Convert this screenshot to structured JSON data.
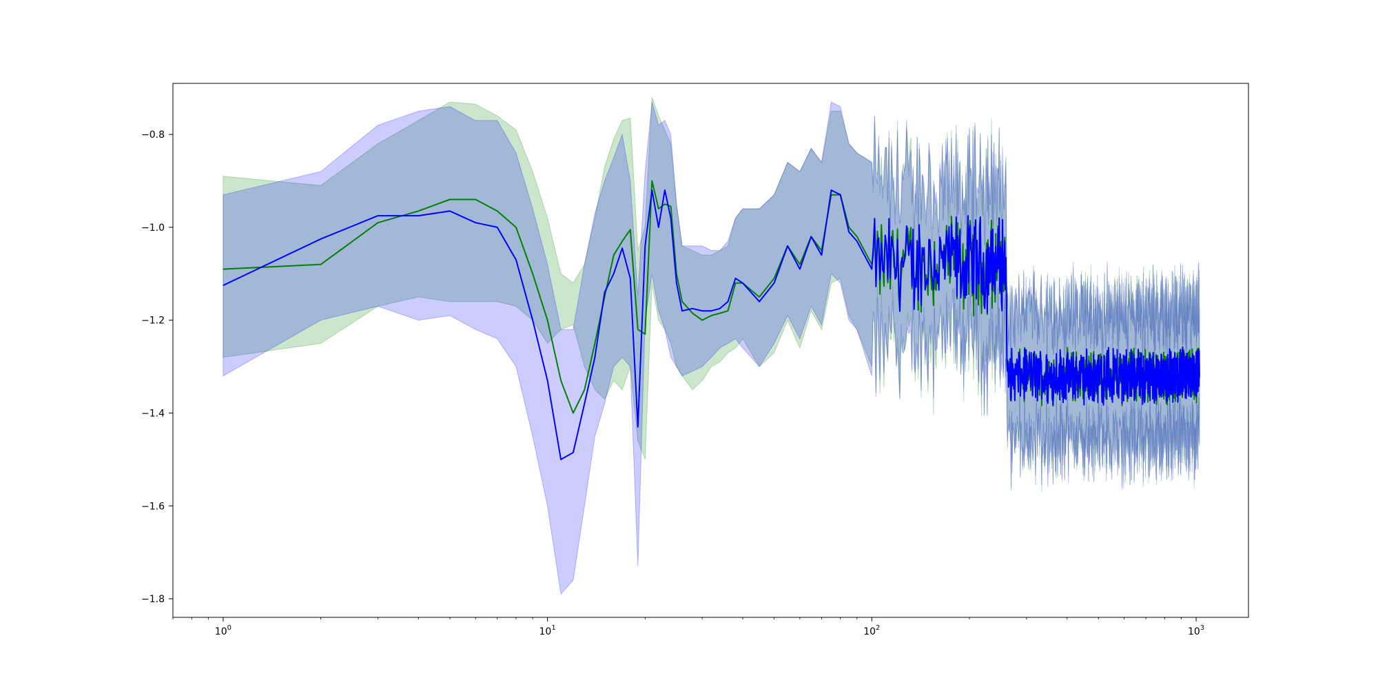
{
  "chart_data": {
    "type": "line",
    "title": "",
    "xlabel": "",
    "ylabel": "",
    "xscale": "log",
    "xlim": [
      0.7,
      1450
    ],
    "ylim": [
      -1.84,
      -0.69
    ],
    "grid": false,
    "xtick_labels": [
      {
        "value": 1,
        "base": "10",
        "exp": "0"
      },
      {
        "value": 10,
        "base": "10",
        "exp": "1"
      },
      {
        "value": 100,
        "base": "10",
        "exp": "2"
      },
      {
        "value": 1000,
        "base": "10",
        "exp": "3"
      }
    ],
    "ytick_labels": [
      {
        "value": -0.8,
        "label": "−0.8"
      },
      {
        "value": -1.0,
        "label": "−1.0"
      },
      {
        "value": -1.2,
        "label": "−1.2"
      },
      {
        "value": -1.4,
        "label": "−1.4"
      },
      {
        "value": -1.6,
        "label": "−1.6"
      },
      {
        "value": -1.8,
        "label": "−1.8"
      }
    ],
    "series": [
      {
        "color": "#008000",
        "band_color": "#008000",
        "band_opacity": 0.2,
        "x": [
          1,
          2,
          3,
          4,
          5,
          6,
          7,
          8,
          9,
          10,
          11,
          12,
          13,
          14,
          15,
          16,
          17,
          18,
          19,
          20,
          21,
          22,
          23,
          24,
          25,
          26,
          28,
          30,
          32,
          34,
          36,
          38,
          40,
          45,
          50,
          55,
          60,
          65,
          70,
          75,
          80,
          85,
          90,
          100
        ],
        "mean": [
          -1.09,
          -1.08,
          -0.99,
          -0.965,
          -0.94,
          -0.94,
          -0.965,
          -1.0,
          -1.1,
          -1.2,
          -1.33,
          -1.4,
          -1.35,
          -1.25,
          -1.15,
          -1.06,
          -1.03,
          -1.005,
          -1.22,
          -1.23,
          -0.9,
          -0.96,
          -0.95,
          -0.955,
          -1.1,
          -1.16,
          -1.185,
          -1.2,
          -1.19,
          -1.185,
          -1.18,
          -1.12,
          -1.12,
          -1.15,
          -1.11,
          -1.04,
          -1.08,
          -1.02,
          -1.05,
          -0.93,
          -0.93,
          -1.0,
          -1.02,
          -1.08
        ],
        "lower": [
          -1.28,
          -1.25,
          -1.17,
          -1.15,
          -1.16,
          -1.16,
          -1.16,
          -1.17,
          -1.2,
          -1.25,
          -1.22,
          -1.21,
          -1.3,
          -1.35,
          -1.37,
          -1.33,
          -1.35,
          -1.3,
          -1.46,
          -1.5,
          -1.12,
          -1.2,
          -1.22,
          -1.25,
          -1.3,
          -1.32,
          -1.35,
          -1.33,
          -1.3,
          -1.29,
          -1.27,
          -1.26,
          -1.24,
          -1.3,
          -1.27,
          -1.2,
          -1.26,
          -1.18,
          -1.22,
          -1.12,
          -1.11,
          -1.19,
          -1.22,
          -1.3
        ],
        "upper": [
          -0.89,
          -0.91,
          -0.82,
          -0.77,
          -0.73,
          -0.735,
          -0.76,
          -0.79,
          -0.88,
          -0.98,
          -1.1,
          -1.12,
          -1.08,
          -0.98,
          -0.87,
          -0.81,
          -0.77,
          -0.765,
          -1.05,
          -1.0,
          -0.72,
          -0.76,
          -0.79,
          -0.82,
          -0.95,
          -1.04,
          -1.05,
          -1.06,
          -1.06,
          -1.05,
          -1.04,
          -0.98,
          -0.96,
          -0.96,
          -0.93,
          -0.86,
          -0.88,
          -0.83,
          -0.86,
          -0.75,
          -0.75,
          -0.82,
          -0.84,
          -0.86
        ]
      },
      {
        "color": "#0000ff",
        "band_color": "#0000ff",
        "band_opacity": 0.2,
        "x": [
          1,
          2,
          3,
          4,
          5,
          6,
          7,
          8,
          9,
          10,
          11,
          12,
          13,
          14,
          15,
          16,
          17,
          18,
          19,
          20,
          21,
          22,
          23,
          24,
          25,
          26,
          28,
          30,
          32,
          34,
          36,
          38,
          40,
          45,
          50,
          55,
          60,
          65,
          70,
          75,
          80,
          85,
          90,
          100
        ],
        "mean": [
          -1.125,
          -1.025,
          -0.975,
          -0.975,
          -0.965,
          -0.99,
          -1.0,
          -1.07,
          -1.2,
          -1.33,
          -1.5,
          -1.485,
          -1.38,
          -1.28,
          -1.14,
          -1.1,
          -1.045,
          -1.11,
          -1.43,
          -1.04,
          -0.92,
          -1.0,
          -0.92,
          -0.98,
          -1.12,
          -1.18,
          -1.175,
          -1.18,
          -1.18,
          -1.175,
          -1.16,
          -1.11,
          -1.12,
          -1.16,
          -1.12,
          -1.04,
          -1.09,
          -1.02,
          -1.06,
          -0.92,
          -0.93,
          -1.01,
          -1.03,
          -1.09
        ],
        "lower": [
          -1.32,
          -1.2,
          -1.17,
          -1.2,
          -1.19,
          -1.22,
          -1.24,
          -1.3,
          -1.45,
          -1.6,
          -1.79,
          -1.76,
          -1.6,
          -1.45,
          -1.38,
          -1.3,
          -1.28,
          -1.3,
          -1.73,
          -1.2,
          -1.1,
          -1.18,
          -1.22,
          -1.28,
          -1.3,
          -1.32,
          -1.31,
          -1.3,
          -1.28,
          -1.26,
          -1.25,
          -1.24,
          -1.26,
          -1.3,
          -1.25,
          -1.19,
          -1.24,
          -1.17,
          -1.21,
          -1.1,
          -1.12,
          -1.2,
          -1.22,
          -1.32
        ],
        "upper": [
          -0.93,
          -0.88,
          -0.78,
          -0.75,
          -0.74,
          -0.77,
          -0.77,
          -0.84,
          -0.96,
          -1.08,
          -1.22,
          -1.22,
          -1.08,
          -0.97,
          -0.9,
          -0.85,
          -0.8,
          -0.9,
          -1.15,
          -0.88,
          -0.73,
          -0.78,
          -0.77,
          -0.8,
          -0.95,
          -1.04,
          -1.04,
          -1.04,
          -1.05,
          -1.05,
          -1.03,
          -0.98,
          -0.96,
          -0.96,
          -0.93,
          -0.86,
          -0.88,
          -0.83,
          -0.86,
          -0.73,
          -0.74,
          -0.82,
          -0.84,
          -0.86
        ]
      }
    ],
    "noisy_region": {
      "x_range": [
        100,
        1024
      ],
      "segments": [
        {
          "x_from": 100,
          "x_to": 260,
          "mean": -1.08,
          "spread": 0.09,
          "band": 0.17
        },
        {
          "x_from": 260,
          "x_to": 1024,
          "mean": -1.32,
          "spread": 0.05,
          "band": 0.14
        }
      ]
    }
  }
}
